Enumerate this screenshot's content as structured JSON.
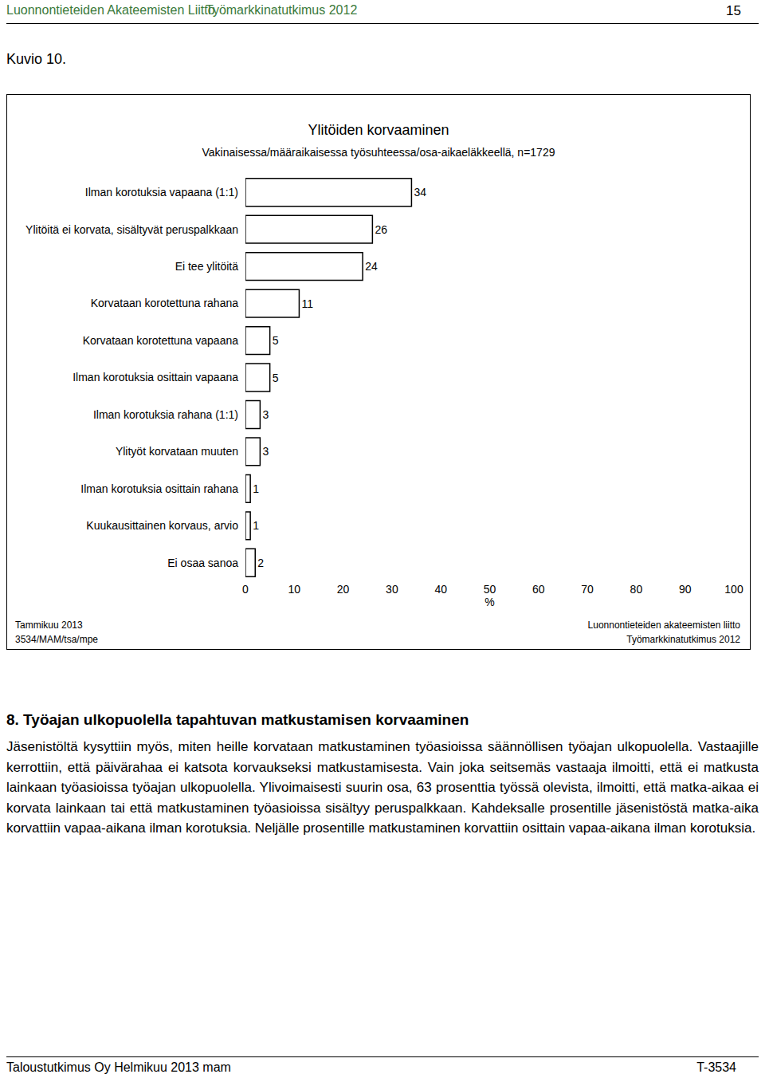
{
  "header": {
    "left": "Luonnontieteiden Akateemisten Liitto",
    "center": "Työmarkkinatutkimus 2012",
    "page": "15"
  },
  "figure_label": "Kuvio 10.",
  "chart_data": {
    "type": "bar",
    "orientation": "horizontal",
    "title": "Ylitöiden korvaaminen",
    "subtitle": "Vakinaisessa/määraikaisessa työsuhteessa/osa-aikaeläkkeellä, n=1729",
    "categories": [
      "Ilman korotuksia vapaana (1:1)",
      "Ylitöitä ei korvata, sisältyvät peruspalkkaan",
      "Ei tee ylitöitä",
      "Korvataan korotettuna rahana",
      "Korvataan korotettuna vapaana",
      "Ilman korotuksia osittain vapaana",
      "Ilman korotuksia rahana (1:1)",
      "Ylityöt korvataan muuten",
      "Ilman korotuksia osittain rahana",
      "Kuukausittainen korvaus, arvio",
      "Ei osaa sanoa"
    ],
    "values": [
      34,
      26,
      24,
      11,
      5,
      5,
      3,
      3,
      1,
      1,
      2
    ],
    "color": "#ffffff",
    "x_label": "%",
    "xlim": [
      0,
      100
    ],
    "xticks": [
      0,
      10,
      20,
      30,
      40,
      50,
      60,
      70,
      80,
      90,
      100
    ],
    "data_labels": true,
    "grid": false
  },
  "chart_notes": {
    "left": [
      "Tammikuu 2013",
      "3534/MAM/tsa/mpe"
    ],
    "right": [
      "Luonnontieteiden akateemisten liitto",
      "Työmarkkinatutkimus 2012"
    ]
  },
  "section": {
    "heading": "8. Työajan ulkopuolella tapahtuvan matkustamisen korvaaminen",
    "paragraph": "Jäsenistöltä kysyttiin myös, miten heille korvataan matkustaminen työasioissa säännöllisen työajan ulkopuolella. Vastaajille kerrottiin, että päivärahaa ei katsota korvaukseksi matkustamisesta. Vain joka seitsemäs vastaaja ilmoitti, että ei matkusta lainkaan työasioissa työajan ulkopuolella. Ylivoimaisesti suurin osa, 63 prosenttia työssä olevista, ilmoitti, että matka-aikaa ei korvata lainkaan tai että matkustaminen työasioissa sisältyy peruspalkkaan. Kahdeksalle prosentille jäsenistöstä matka-aika korvattiin vapaa-aikana ilman korotuksia. Neljälle prosentille matkustaminen korvattiin osittain vapaa-aikana ilman korotuksia."
  },
  "footer": {
    "left": "Taloustutkimus Oy Helmikuu 2013 mam",
    "right": "T-3534"
  }
}
